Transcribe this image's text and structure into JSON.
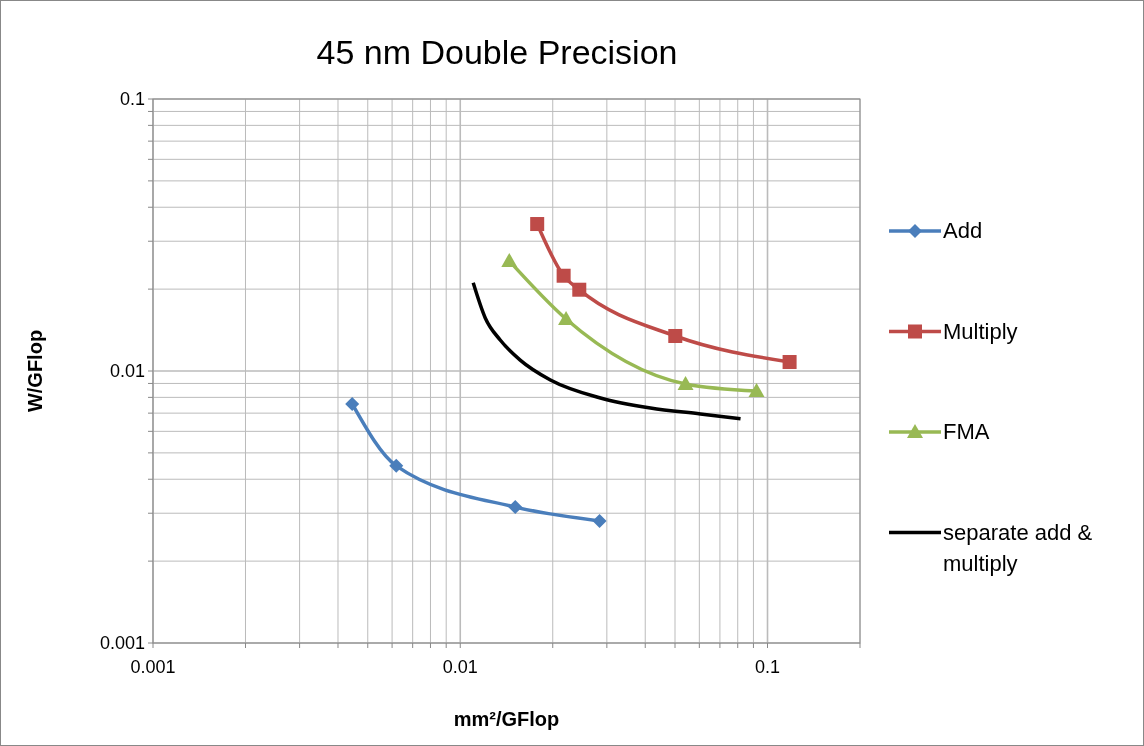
{
  "chart_data": {
    "type": "line",
    "title": "45 nm Double Precision",
    "xlabel": "mm²/GFlop",
    "ylabel": "W/GFlop",
    "log": "xy",
    "grid": true,
    "legend": "right",
    "xlim": [
      0.001,
      0.2
    ],
    "ylim": [
      0.001,
      0.1
    ],
    "xticks": [
      0.001,
      {
        "value": 0.002,
        "label": null
      },
      {
        "value": 0.003,
        "label": null
      },
      {
        "value": 0.004,
        "label": null
      },
      {
        "value": 0.005,
        "label": null
      },
      {
        "value": 0.006,
        "label": null
      },
      {
        "value": 0.007,
        "label": null
      },
      {
        "value": 0.008,
        "label": null
      },
      {
        "value": 0.009,
        "label": null
      },
      0.01,
      {
        "value": 0.02,
        "label": null
      },
      {
        "value": 0.03,
        "label": null
      },
      {
        "value": 0.04,
        "label": null
      },
      {
        "value": 0.05,
        "label": null
      },
      {
        "value": 0.06,
        "label": null
      },
      {
        "value": 0.07,
        "label": null
      },
      {
        "value": 0.08,
        "label": null
      },
      {
        "value": 0.09,
        "label": null
      },
      0.1,
      {
        "value": 0.2,
        "label": null
      }
    ],
    "yticks": [
      0.001,
      {
        "value": 0.002,
        "label": null
      },
      {
        "value": 0.003,
        "label": null
      },
      {
        "value": 0.004,
        "label": null
      },
      {
        "value": 0.005,
        "label": null
      },
      {
        "value": 0.006,
        "label": null
      },
      {
        "value": 0.007,
        "label": null
      },
      {
        "value": 0.008,
        "label": null
      },
      {
        "value": 0.009,
        "label": null
      },
      0.01,
      {
        "value": 0.02,
        "label": null
      },
      {
        "value": 0.03,
        "label": null
      },
      {
        "value": 0.04,
        "label": null
      },
      {
        "value": 0.05,
        "label": null
      },
      {
        "value": 0.06,
        "label": null
      },
      {
        "value": 0.07,
        "label": null
      },
      {
        "value": 0.08,
        "label": null
      },
      {
        "value": 0.09,
        "label": null
      },
      0.1
    ],
    "series": [
      {
        "name": "Add",
        "color": "#4a7ebb",
        "marker": "diamond",
        "x": [
          0.00445,
          0.00619,
          0.0151,
          0.0284
        ],
        "values": [
          0.00757,
          0.00448,
          0.00316,
          0.00281
        ]
      },
      {
        "name": "Multiply",
        "color": "#be4b48",
        "marker": "square",
        "x": [
          0.0178,
          0.0217,
          0.0244,
          0.0501,
          0.118
        ],
        "values": [
          0.0347,
          0.0224,
          0.0199,
          0.01345,
          0.01079
        ]
      },
      {
        "name": "FMA",
        "color": "#98b954",
        "marker": "triangle",
        "x": [
          0.01444,
          0.0221,
          0.0541,
          0.0921
        ],
        "values": [
          0.0254,
          0.01553,
          0.00896,
          0.00844
        ]
      },
      {
        "name": "separate add & multiply",
        "color": "#000000",
        "marker": "none",
        "x": [
          0.01102,
          0.01206,
          0.01349,
          0.01567,
          0.01965,
          0.0286,
          0.0416,
          0.0605,
          0.0817
        ],
        "values": [
          0.0211,
          0.01567,
          0.013,
          0.01097,
          0.00927,
          0.00796,
          0.00731,
          0.00695,
          0.00667
        ]
      }
    ]
  }
}
